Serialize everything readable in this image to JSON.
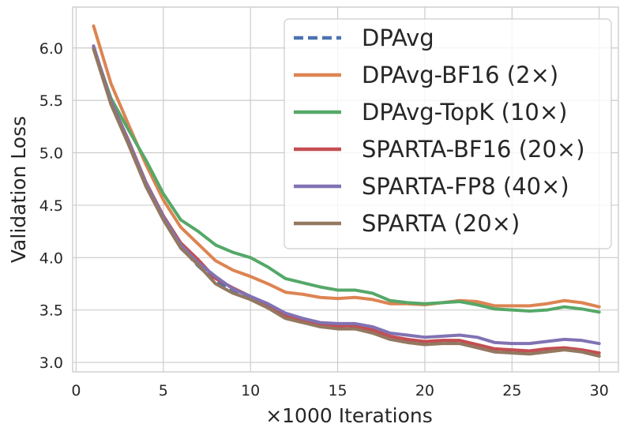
{
  "chart_data": {
    "type": "line",
    "title": "",
    "xlabel": "×1000 Iterations",
    "ylabel": "Validation Loss",
    "xlim": [
      -0.2,
      31.1
    ],
    "ylim": [
      2.91,
      6.39
    ],
    "xticks": [
      0,
      5,
      10,
      15,
      20,
      25,
      30
    ],
    "xtick_labels": [
      "0",
      "5",
      "10",
      "15",
      "20",
      "25",
      "30"
    ],
    "yticks": [
      3.0,
      3.5,
      4.0,
      4.5,
      5.0,
      5.5,
      6.0
    ],
    "ytick_labels": [
      "3.0",
      "3.5",
      "4.0",
      "4.5",
      "5.0",
      "5.5",
      "6.0"
    ],
    "grid": true,
    "legend_position": "top-right",
    "x": [
      1,
      2,
      3,
      4,
      5,
      6,
      7,
      8,
      9,
      10,
      11,
      12,
      13,
      14,
      15,
      16,
      17,
      18,
      19,
      20,
      21,
      22,
      23,
      24,
      25,
      26,
      27,
      28,
      29,
      30
    ],
    "series": [
      {
        "name": "DPAvg",
        "color": "#4c72b0",
        "dash": "dashed",
        "values": [
          6.01,
          5.47,
          5.09,
          4.69,
          4.37,
          4.1,
          3.92,
          3.77,
          3.68,
          3.61,
          3.52,
          3.43,
          3.39,
          3.34,
          3.33,
          3.33,
          3.29,
          3.23,
          3.2,
          3.19,
          3.19,
          3.19,
          3.15,
          3.11,
          3.1,
          3.09,
          3.11,
          3.13,
          3.11,
          3.07
        ]
      },
      {
        "name": "DPAvg-BF16 (2×)",
        "color": "#dd8452",
        "dash": "solid",
        "values": [
          6.21,
          5.66,
          5.27,
          4.89,
          4.55,
          4.29,
          4.13,
          3.97,
          3.88,
          3.82,
          3.75,
          3.67,
          3.65,
          3.62,
          3.61,
          3.62,
          3.6,
          3.56,
          3.56,
          3.55,
          3.57,
          3.59,
          3.58,
          3.54,
          3.54,
          3.54,
          3.56,
          3.59,
          3.57,
          3.53
        ]
      },
      {
        "name": "DPAvg-TopK (10×)",
        "color": "#55a868",
        "dash": "solid",
        "values": [
          6.0,
          5.52,
          5.22,
          4.93,
          4.61,
          4.36,
          4.25,
          4.12,
          4.05,
          4.0,
          3.91,
          3.8,
          3.76,
          3.72,
          3.69,
          3.69,
          3.66,
          3.59,
          3.57,
          3.56,
          3.57,
          3.58,
          3.55,
          3.51,
          3.5,
          3.49,
          3.5,
          3.53,
          3.51,
          3.48
        ]
      },
      {
        "name": "SPARTA-BF16 (20×)",
        "color": "#c44e52",
        "dash": "solid",
        "values": [
          6.01,
          5.49,
          5.12,
          4.72,
          4.4,
          4.14,
          3.98,
          3.8,
          3.71,
          3.63,
          3.55,
          3.45,
          3.41,
          3.36,
          3.35,
          3.35,
          3.31,
          3.25,
          3.22,
          3.2,
          3.21,
          3.21,
          3.17,
          3.13,
          3.12,
          3.11,
          3.13,
          3.14,
          3.12,
          3.09
        ]
      },
      {
        "name": "SPARTA-FP8 (40×)",
        "color": "#8172b3",
        "dash": "solid",
        "values": [
          6.02,
          5.49,
          5.11,
          4.71,
          4.39,
          4.12,
          3.95,
          3.82,
          3.7,
          3.63,
          3.56,
          3.47,
          3.42,
          3.38,
          3.37,
          3.37,
          3.34,
          3.28,
          3.26,
          3.24,
          3.25,
          3.26,
          3.24,
          3.19,
          3.18,
          3.18,
          3.2,
          3.22,
          3.21,
          3.18
        ]
      },
      {
        "name": "SPARTA (20×)",
        "color": "#937860",
        "dash": "solid",
        "values": [
          5.99,
          5.46,
          5.08,
          4.68,
          4.36,
          4.09,
          3.93,
          3.75,
          3.66,
          3.6,
          3.52,
          3.42,
          3.38,
          3.34,
          3.32,
          3.32,
          3.28,
          3.22,
          3.19,
          3.17,
          3.18,
          3.18,
          3.14,
          3.1,
          3.09,
          3.08,
          3.1,
          3.12,
          3.1,
          3.06
        ]
      }
    ]
  }
}
